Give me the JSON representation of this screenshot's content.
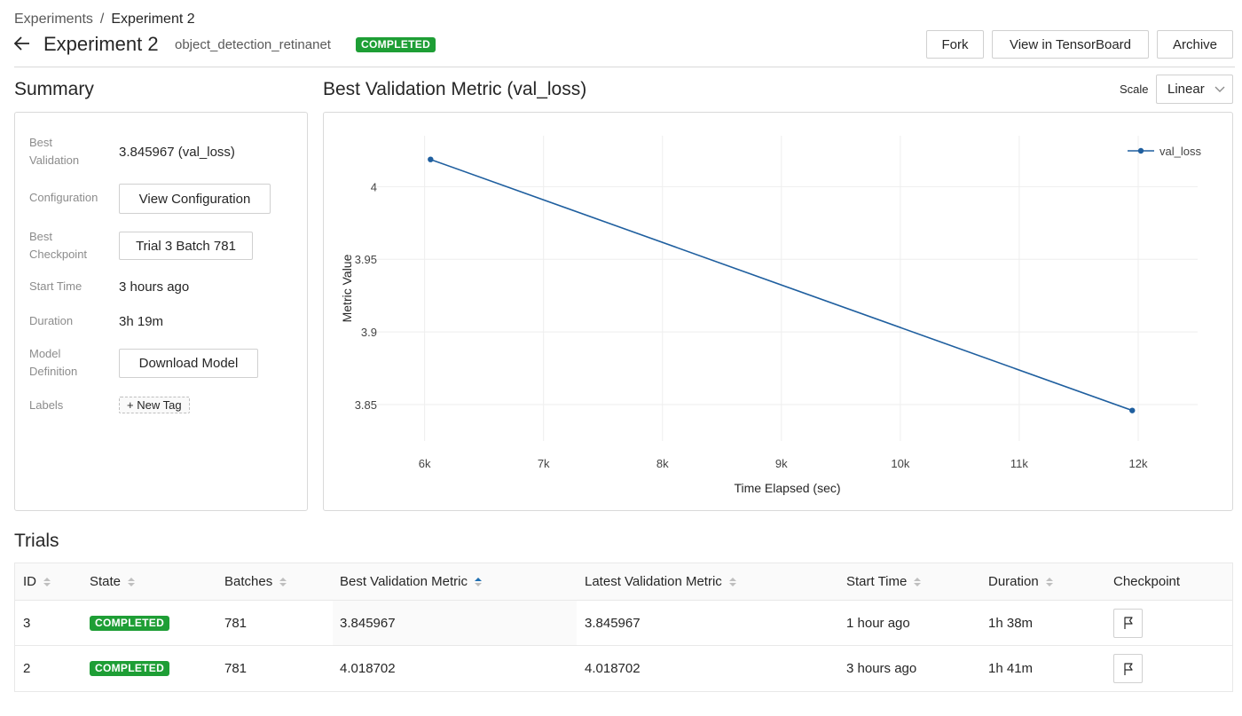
{
  "breadcrumb": {
    "root": "Experiments",
    "separator": "/",
    "current": "Experiment 2"
  },
  "header": {
    "title": "Experiment 2",
    "subtitle": "object_detection_retinanet",
    "status": "COMPLETED",
    "buttons": {
      "fork": "Fork",
      "tensorboard": "View in TensorBoard",
      "archive": "Archive"
    }
  },
  "summary": {
    "title": "Summary",
    "best_validation_label": "Best Validation",
    "best_validation_value": "3.845967 (val_loss)",
    "configuration_label": "Configuration",
    "configuration_button": "View Configuration",
    "best_checkpoint_label": "Best Checkpoint",
    "best_checkpoint_button": "Trial 3 Batch 781",
    "start_time_label": "Start Time",
    "start_time_value": "3 hours ago",
    "duration_label": "Duration",
    "duration_value": "3h 19m",
    "model_definition_label": "Model Definition",
    "model_definition_button": "Download Model",
    "labels_label": "Labels",
    "new_tag": "+ New Tag"
  },
  "chart_section": {
    "title": "Best Validation Metric (val_loss)",
    "scale_label": "Scale",
    "scale_value": "Linear"
  },
  "chart_data": {
    "type": "line",
    "xlabel": "Time Elapsed (sec)",
    "ylabel": "Metric Value",
    "xlim": [
      5600,
      12500
    ],
    "ylim": [
      3.825,
      4.035
    ],
    "x_ticks": [
      6000,
      7000,
      8000,
      9000,
      10000,
      11000,
      12000
    ],
    "x_tick_labels": [
      "6k",
      "7k",
      "8k",
      "9k",
      "10k",
      "11k",
      "12k"
    ],
    "y_ticks": [
      3.85,
      3.9,
      3.95,
      4.0
    ],
    "y_tick_labels": [
      "3.85",
      "3.9",
      "3.95",
      "4"
    ],
    "grid": true,
    "legend_position": "top-right",
    "series": [
      {
        "name": "val_loss",
        "color": "#1f5f9f",
        "x": [
          6050,
          11950
        ],
        "y": [
          4.018702,
          3.845967
        ]
      }
    ]
  },
  "trials": {
    "title": "Trials",
    "columns": [
      "ID",
      "State",
      "Batches",
      "Best Validation Metric",
      "Latest Validation Metric",
      "Start Time",
      "Duration",
      "Checkpoint"
    ],
    "rows": [
      {
        "id": "3",
        "state": "COMPLETED",
        "batches": "781",
        "best": "3.845967",
        "latest": "3.845967",
        "start": "1 hour ago",
        "duration": "1h 38m"
      },
      {
        "id": "2",
        "state": "COMPLETED",
        "batches": "781",
        "best": "4.018702",
        "latest": "4.018702",
        "start": "3 hours ago",
        "duration": "1h 41m"
      }
    ]
  },
  "colors": {
    "completed": "#1e9e35",
    "line": "#1f5f9f",
    "sort_active": "#1f6fb2"
  }
}
